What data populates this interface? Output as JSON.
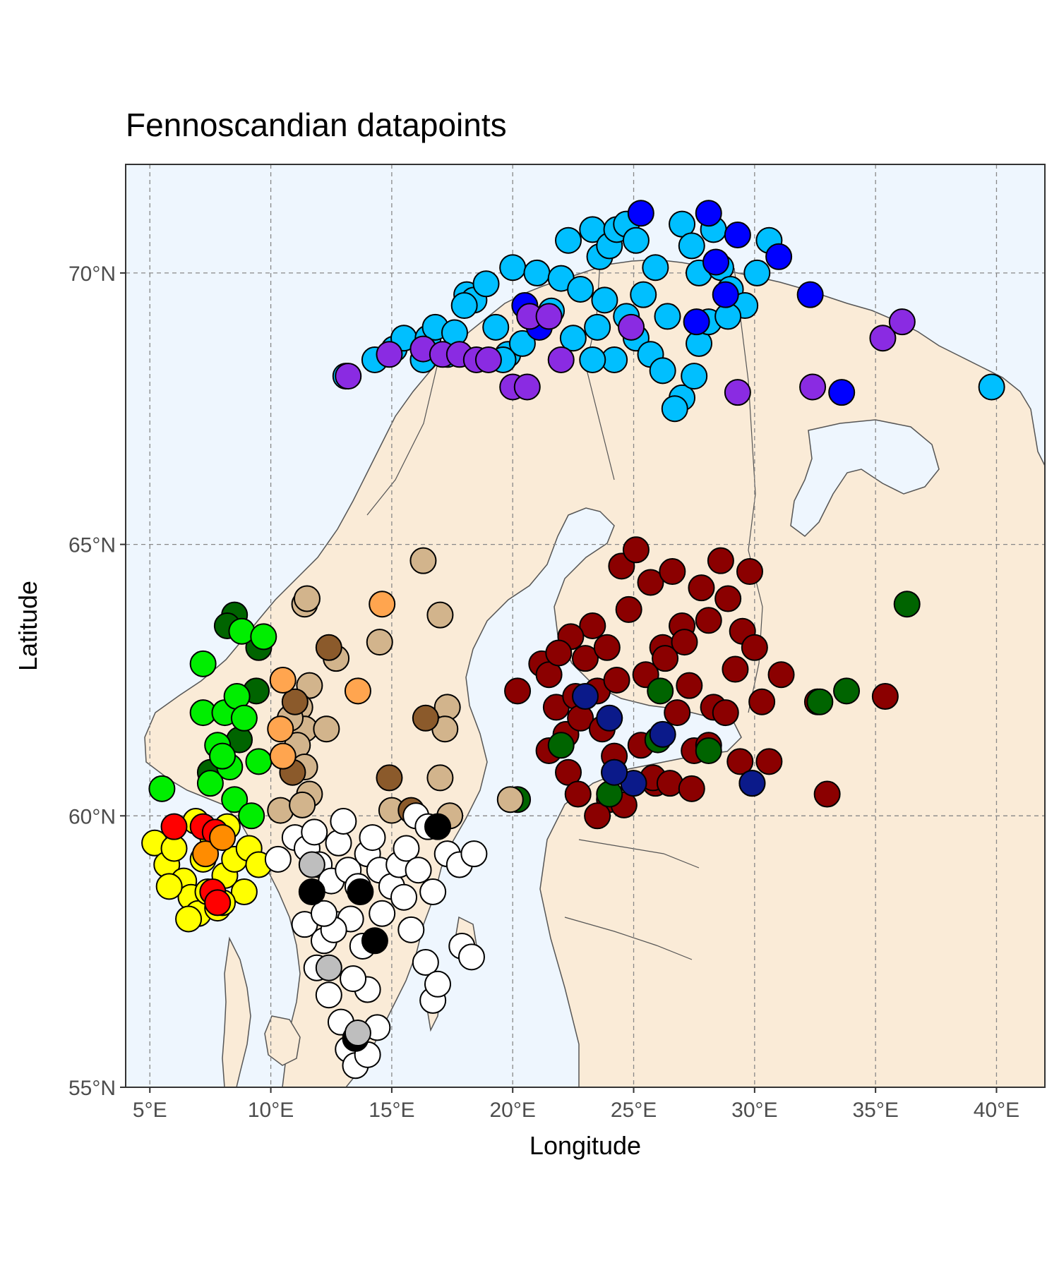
{
  "chart_data": {
    "type": "scatter",
    "title": "Fennoscandian datapoints",
    "xlabel": "Longitude",
    "ylabel": "Latitude",
    "xlim": [
      4,
      42
    ],
    "ylim": [
      55,
      72
    ],
    "x_ticks": [
      5,
      10,
      15,
      20,
      25,
      30,
      35,
      40
    ],
    "y_ticks": [
      55,
      60,
      65,
      70
    ],
    "x_tick_labels": [
      "5°E",
      "10°E",
      "15°E",
      "20°E",
      "25°E",
      "30°E",
      "35°E",
      "40°E"
    ],
    "y_tick_labels": [
      "55°N",
      "60°N",
      "65°N",
      "70°N"
    ],
    "grid": true,
    "colors": {
      "panel_background": "#eef6fe",
      "land": "#faebd7",
      "border": "#555555",
      "grid": "#888888"
    },
    "series": [
      {
        "color": "#00bfff",
        "points": [
          [
            13.1,
            68.1
          ],
          [
            15.1,
            68.6
          ],
          [
            15.5,
            68.8
          ],
          [
            16.3,
            68.4
          ],
          [
            16.5,
            68.8
          ],
          [
            16.8,
            69.0
          ],
          [
            17.3,
            68.5
          ],
          [
            18.1,
            69.6
          ],
          [
            18.4,
            69.5
          ],
          [
            18.9,
            69.8
          ],
          [
            19.3,
            69.0
          ],
          [
            19.8,
            68.5
          ],
          [
            20.0,
            70.1
          ],
          [
            20.4,
            68.7
          ],
          [
            21.0,
            70.0
          ],
          [
            22.0,
            69.9
          ],
          [
            22.3,
            70.6
          ],
          [
            22.8,
            69.7
          ],
          [
            23.3,
            70.8
          ],
          [
            23.6,
            70.3
          ],
          [
            23.8,
            69.5
          ],
          [
            24.0,
            70.5
          ],
          [
            24.3,
            70.8
          ],
          [
            24.7,
            70.9
          ],
          [
            25.1,
            70.6
          ],
          [
            25.4,
            69.6
          ],
          [
            25.9,
            70.1
          ],
          [
            26.4,
            69.2
          ],
          [
            27.0,
            70.9
          ],
          [
            27.4,
            70.5
          ],
          [
            27.7,
            70.0
          ],
          [
            28.3,
            70.8
          ],
          [
            28.6,
            70.1
          ],
          [
            29.0,
            69.7
          ],
          [
            29.6,
            69.4
          ],
          [
            30.1,
            70.0
          ],
          [
            30.6,
            70.6
          ],
          [
            23.5,
            69.0
          ],
          [
            24.2,
            68.4
          ],
          [
            25.1,
            68.8
          ],
          [
            25.7,
            68.5
          ],
          [
            26.2,
            68.2
          ],
          [
            27.0,
            67.7
          ],
          [
            27.5,
            68.1
          ],
          [
            27.7,
            68.7
          ],
          [
            28.1,
            69.1
          ],
          [
            28.9,
            69.2
          ],
          [
            21.6,
            69.3
          ],
          [
            22.5,
            68.8
          ],
          [
            23.3,
            68.4
          ],
          [
            24.7,
            69.2
          ],
          [
            26.7,
            67.5
          ],
          [
            39.8,
            67.9
          ],
          [
            19.6,
            68.4
          ],
          [
            17.6,
            68.9
          ],
          [
            14.3,
            68.4
          ],
          [
            18.0,
            69.4
          ]
        ]
      },
      {
        "color": "#0000ff",
        "points": [
          [
            25.3,
            71.1
          ],
          [
            28.1,
            71.1
          ],
          [
            29.3,
            70.7
          ],
          [
            31.0,
            70.3
          ],
          [
            28.4,
            70.2
          ],
          [
            28.8,
            69.6
          ],
          [
            27.6,
            69.1
          ],
          [
            32.3,
            69.6
          ],
          [
            20.5,
            69.4
          ],
          [
            21.1,
            69.0
          ],
          [
            33.6,
            67.8
          ]
        ]
      },
      {
        "color": "#8a2be2",
        "points": [
          [
            13.2,
            68.1
          ],
          [
            14.9,
            68.5
          ],
          [
            16.3,
            68.6
          ],
          [
            17.1,
            68.5
          ],
          [
            17.8,
            68.5
          ],
          [
            18.5,
            68.4
          ],
          [
            19.0,
            68.4
          ],
          [
            20.0,
            67.9
          ],
          [
            20.6,
            67.9
          ],
          [
            20.7,
            69.2
          ],
          [
            21.5,
            69.2
          ],
          [
            22.0,
            68.4
          ],
          [
            24.9,
            69.0
          ],
          [
            29.3,
            67.8
          ],
          [
            32.4,
            67.9
          ],
          [
            35.3,
            68.8
          ],
          [
            36.1,
            69.1
          ]
        ]
      },
      {
        "color": "#8b0000",
        "points": [
          [
            20.2,
            62.3
          ],
          [
            21.2,
            62.8
          ],
          [
            21.5,
            62.6
          ],
          [
            21.8,
            62.0
          ],
          [
            21.5,
            61.2
          ],
          [
            22.2,
            61.5
          ],
          [
            22.6,
            62.2
          ],
          [
            22.3,
            60.8
          ],
          [
            22.8,
            61.8
          ],
          [
            23.0,
            62.9
          ],
          [
            23.3,
            63.5
          ],
          [
            23.5,
            62.3
          ],
          [
            23.7,
            61.6
          ],
          [
            23.9,
            63.1
          ],
          [
            24.0,
            60.3
          ],
          [
            24.3,
            62.5
          ],
          [
            24.5,
            64.6
          ],
          [
            24.8,
            63.8
          ],
          [
            25.1,
            64.9
          ],
          [
            25.3,
            61.3
          ],
          [
            25.5,
            62.6
          ],
          [
            25.7,
            64.3
          ],
          [
            25.9,
            60.6
          ],
          [
            26.2,
            63.1
          ],
          [
            26.6,
            64.5
          ],
          [
            26.8,
            61.9
          ],
          [
            27.0,
            63.5
          ],
          [
            27.3,
            62.4
          ],
          [
            27.5,
            61.2
          ],
          [
            27.8,
            64.2
          ],
          [
            28.1,
            63.6
          ],
          [
            28.3,
            62.0
          ],
          [
            28.6,
            64.7
          ],
          [
            28.9,
            64.0
          ],
          [
            29.2,
            62.7
          ],
          [
            29.5,
            63.4
          ],
          [
            29.8,
            64.5
          ],
          [
            30.0,
            63.1
          ],
          [
            30.3,
            62.1
          ],
          [
            30.6,
            61.0
          ],
          [
            31.1,
            62.6
          ],
          [
            29.4,
            61.0
          ],
          [
            29.9,
            60.6
          ],
          [
            32.6,
            62.1
          ],
          [
            33.0,
            60.4
          ],
          [
            35.4,
            62.2
          ],
          [
            22.7,
            60.4
          ],
          [
            23.5,
            60.0
          ],
          [
            24.6,
            60.2
          ],
          [
            25.8,
            60.7
          ],
          [
            26.5,
            60.6
          ],
          [
            27.4,
            60.5
          ],
          [
            28.1,
            61.3
          ],
          [
            28.8,
            61.9
          ],
          [
            22.4,
            63.3
          ],
          [
            21.9,
            63.0
          ],
          [
            26.3,
            62.9
          ],
          [
            27.1,
            63.2
          ],
          [
            24.2,
            61.1
          ]
        ]
      },
      {
        "color": "#006400",
        "points": [
          [
            8.5,
            63.7
          ],
          [
            8.2,
            63.5
          ],
          [
            9.5,
            63.1
          ],
          [
            9.4,
            62.3
          ],
          [
            8.7,
            61.4
          ],
          [
            7.5,
            60.8
          ],
          [
            20.2,
            60.3
          ],
          [
            22.0,
            61.3
          ],
          [
            24.2,
            60.8
          ],
          [
            24.0,
            60.4
          ],
          [
            26.1,
            62.3
          ],
          [
            28.1,
            61.2
          ],
          [
            32.7,
            62.1
          ],
          [
            33.8,
            62.3
          ],
          [
            36.3,
            63.9
          ],
          [
            26.0,
            61.4
          ]
        ]
      },
      {
        "color": "#00ee00",
        "points": [
          [
            7.2,
            62.8
          ],
          [
            8.8,
            63.4
          ],
          [
            9.7,
            63.3
          ],
          [
            5.5,
            60.5
          ],
          [
            7.2,
            61.9
          ],
          [
            8.1,
            61.9
          ],
          [
            8.6,
            62.2
          ],
          [
            8.9,
            61.8
          ],
          [
            7.8,
            61.3
          ],
          [
            8.3,
            60.9
          ],
          [
            7.5,
            60.6
          ],
          [
            8.5,
            60.3
          ],
          [
            9.2,
            60.0
          ],
          [
            9.5,
            61.0
          ],
          [
            8.0,
            61.1
          ]
        ]
      },
      {
        "color": "#0b1a8a",
        "points": [
          [
            23.0,
            62.2
          ],
          [
            24.0,
            61.8
          ],
          [
            25.0,
            60.6
          ],
          [
            24.2,
            60.8
          ],
          [
            26.2,
            61.5
          ],
          [
            29.9,
            60.6
          ]
        ]
      },
      {
        "color": "#d2b48c",
        "points": [
          [
            11.4,
            63.9
          ],
          [
            11.5,
            64.0
          ],
          [
            11.6,
            62.4
          ],
          [
            11.2,
            62.0
          ],
          [
            11.4,
            61.6
          ],
          [
            10.8,
            61.8
          ],
          [
            11.1,
            61.3
          ],
          [
            11.4,
            60.9
          ],
          [
            11.6,
            60.4
          ],
          [
            10.4,
            60.1
          ],
          [
            11.3,
            60.2
          ],
          [
            12.3,
            61.6
          ],
          [
            12.7,
            62.9
          ],
          [
            14.5,
            63.2
          ],
          [
            16.3,
            64.7
          ],
          [
            17.0,
            63.7
          ],
          [
            17.3,
            62.0
          ],
          [
            17.2,
            61.6
          ],
          [
            17.0,
            60.7
          ],
          [
            17.4,
            60.0
          ],
          [
            15.0,
            60.1
          ],
          [
            19.9,
            60.3
          ]
        ]
      },
      {
        "color": "#8b5a2b",
        "points": [
          [
            12.4,
            63.1
          ],
          [
            11.0,
            62.1
          ],
          [
            10.9,
            60.8
          ],
          [
            14.9,
            60.7
          ],
          [
            15.8,
            60.1
          ],
          [
            16.4,
            61.8
          ]
        ]
      },
      {
        "color": "#ffa54f",
        "points": [
          [
            14.6,
            63.9
          ],
          [
            13.6,
            62.3
          ],
          [
            10.5,
            62.5
          ],
          [
            10.4,
            61.6
          ],
          [
            10.5,
            61.1
          ]
        ]
      },
      {
        "color": "#ffff00",
        "points": [
          [
            5.2,
            59.5
          ],
          [
            5.7,
            59.1
          ],
          [
            6.0,
            59.4
          ],
          [
            6.4,
            58.8
          ],
          [
            6.7,
            58.5
          ],
          [
            7.0,
            58.2
          ],
          [
            7.4,
            58.6
          ],
          [
            7.8,
            58.3
          ],
          [
            8.1,
            58.9
          ],
          [
            8.5,
            59.2
          ],
          [
            8.9,
            58.6
          ],
          [
            9.1,
            59.4
          ],
          [
            9.5,
            59.1
          ],
          [
            6.9,
            59.9
          ],
          [
            7.6,
            59.6
          ],
          [
            8.2,
            59.8
          ],
          [
            6.6,
            58.1
          ],
          [
            7.2,
            59.2
          ],
          [
            5.8,
            58.7
          ],
          [
            8.0,
            58.4
          ]
        ]
      },
      {
        "color": "#ff0000",
        "points": [
          [
            6.0,
            59.8
          ],
          [
            7.2,
            59.8
          ],
          [
            7.7,
            59.7
          ],
          [
            7.6,
            58.6
          ],
          [
            7.8,
            58.4
          ]
        ]
      },
      {
        "color": "#ff8c00",
        "points": [
          [
            7.3,
            59.3
          ],
          [
            8.0,
            59.6
          ]
        ]
      },
      {
        "color": "#ffffff",
        "points": [
          [
            10.3,
            59.2
          ],
          [
            11.0,
            59.6
          ],
          [
            11.5,
            59.4
          ],
          [
            12.0,
            59.1
          ],
          [
            12.5,
            58.8
          ],
          [
            12.8,
            59.5
          ],
          [
            13.2,
            59.0
          ],
          [
            13.6,
            58.7
          ],
          [
            14.0,
            59.3
          ],
          [
            14.5,
            59.0
          ],
          [
            15.0,
            58.7
          ],
          [
            15.3,
            59.1
          ],
          [
            15.6,
            59.4
          ],
          [
            16.1,
            59.0
          ],
          [
            16.7,
            58.6
          ],
          [
            17.3,
            59.3
          ],
          [
            17.8,
            59.1
          ],
          [
            18.4,
            59.3
          ],
          [
            11.4,
            58.0
          ],
          [
            12.2,
            57.7
          ],
          [
            12.7,
            58.0
          ],
          [
            13.3,
            58.1
          ],
          [
            13.8,
            57.6
          ],
          [
            14.6,
            58.2
          ],
          [
            15.8,
            57.9
          ],
          [
            16.4,
            57.3
          ],
          [
            16.7,
            56.6
          ],
          [
            16.9,
            56.9
          ],
          [
            17.9,
            57.6
          ],
          [
            18.3,
            57.4
          ],
          [
            11.9,
            57.2
          ],
          [
            12.4,
            56.7
          ],
          [
            12.9,
            56.2
          ],
          [
            13.2,
            55.7
          ],
          [
            13.5,
            55.4
          ],
          [
            14.0,
            55.6
          ],
          [
            14.4,
            56.1
          ],
          [
            14.0,
            56.8
          ],
          [
            13.4,
            57.0
          ],
          [
            12.6,
            57.9
          ],
          [
            12.2,
            58.2
          ],
          [
            13.0,
            59.9
          ],
          [
            14.2,
            59.6
          ],
          [
            16.0,
            60.0
          ],
          [
            16.5,
            59.8
          ],
          [
            15.5,
            58.5
          ],
          [
            11.8,
            59.7
          ]
        ]
      },
      {
        "color": "#000000",
        "points": [
          [
            16.9,
            59.8
          ],
          [
            11.7,
            58.6
          ],
          [
            13.7,
            58.6
          ],
          [
            14.3,
            57.7
          ],
          [
            13.5,
            55.9
          ]
        ]
      },
      {
        "color": "#bebebe",
        "points": [
          [
            11.7,
            59.1
          ],
          [
            12.4,
            57.2
          ],
          [
            13.6,
            56.0
          ]
        ]
      }
    ]
  }
}
